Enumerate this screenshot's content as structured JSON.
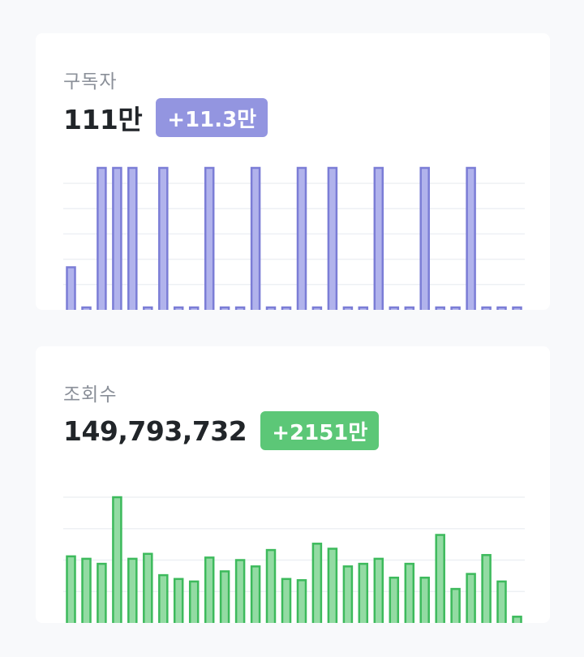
{
  "cards": [
    {
      "label": "구독자",
      "value": "111만",
      "delta": "+11.3만",
      "colors": {
        "fill": "#b1b3ec",
        "stroke": "#7b7dd6"
      }
    },
    {
      "label": "조회수",
      "value": "149,793,732",
      "delta": "+2151만",
      "colors": {
        "fill": "#93dba3",
        "stroke": "#3dba5c"
      }
    }
  ],
  "chart_data": [
    {
      "type": "bar",
      "title": "",
      "xlabel": "",
      "ylabel": "",
      "grid": true,
      "ylim": [
        0,
        10
      ],
      "values": [
        3,
        0,
        10,
        10,
        10,
        0,
        10,
        0,
        0,
        10,
        0,
        0,
        10,
        0,
        0,
        10,
        0,
        10,
        0,
        0,
        10,
        0,
        0,
        10,
        0,
        0,
        10,
        0,
        0,
        0
      ]
    },
    {
      "type": "bar",
      "title": "",
      "xlabel": "",
      "ylabel": "",
      "grid": true,
      "ylim": [
        0,
        10
      ],
      "values": [
        5.3,
        5.1,
        4.7,
        10,
        5.1,
        5.5,
        3.8,
        3.5,
        3.3,
        5.2,
        4.1,
        5.0,
        4.5,
        5.8,
        3.5,
        3.4,
        6.3,
        5.9,
        4.5,
        4.7,
        5.1,
        3.6,
        4.7,
        3.6,
        7.0,
        2.7,
        3.9,
        5.4,
        3.3,
        0.5
      ]
    }
  ]
}
